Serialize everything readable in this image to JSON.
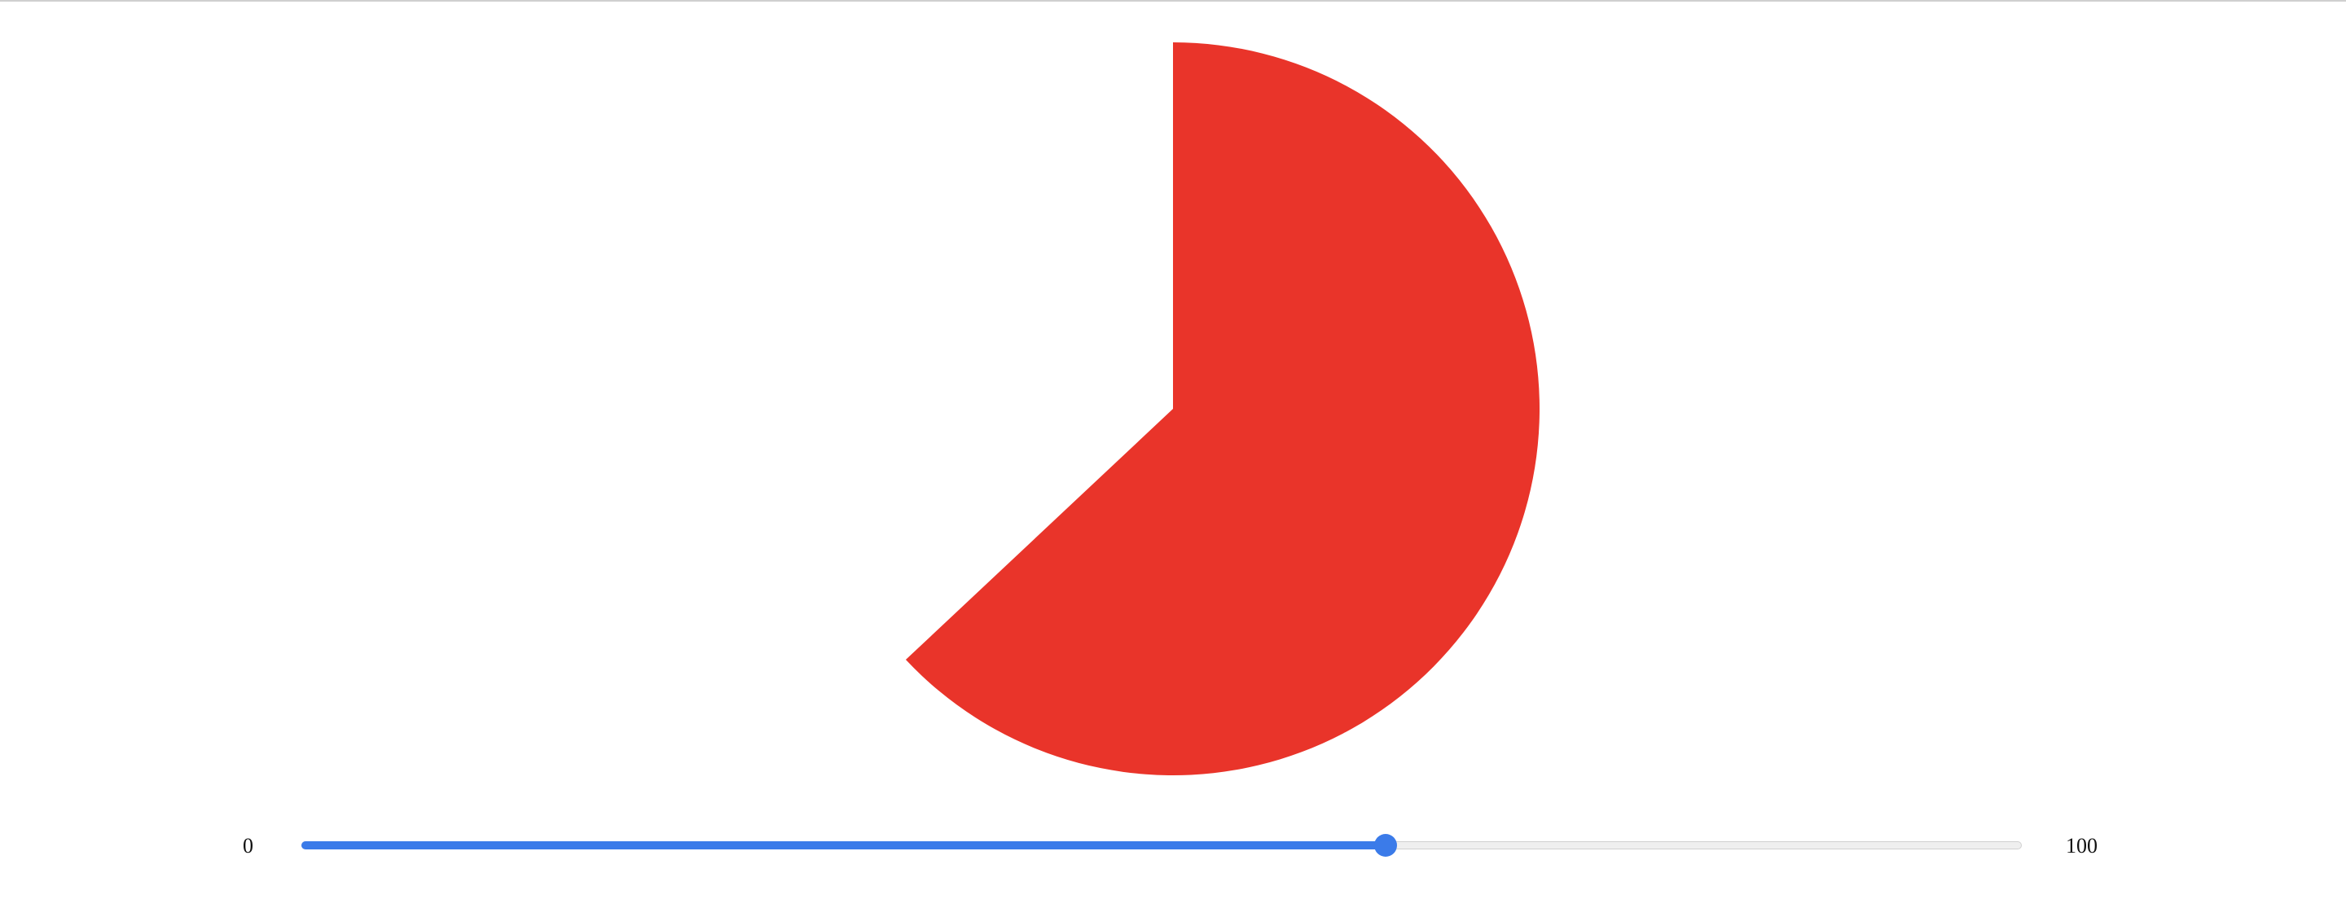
{
  "slider": {
    "min_label": "0",
    "max_label": "100",
    "min": 0,
    "max": 100,
    "value": 63
  },
  "pie": {
    "percent": 63,
    "fill_color": "#E9342A"
  },
  "colors": {
    "accent": "#3B7BE9",
    "track": "#EFEFEF"
  }
}
